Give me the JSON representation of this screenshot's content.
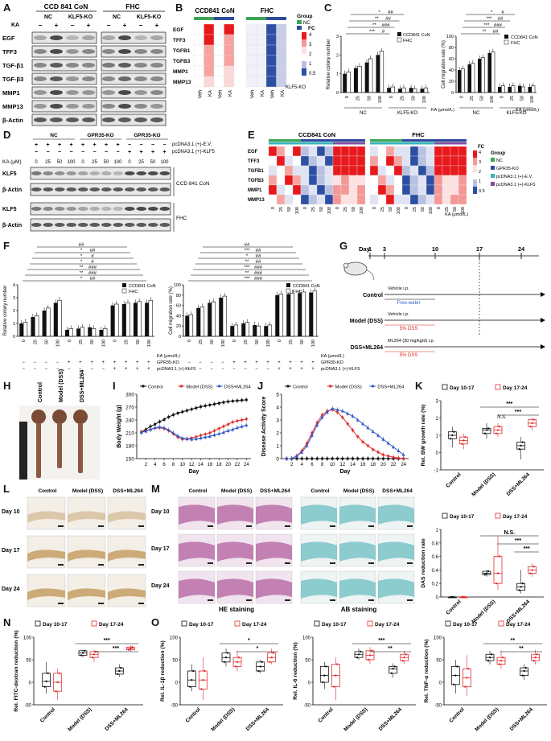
{
  "figure": {
    "panel_letters": [
      "A",
      "B",
      "C",
      "D",
      "E",
      "F",
      "G",
      "H",
      "I",
      "J",
      "K",
      "L",
      "M",
      "N",
      "O"
    ]
  },
  "panel_A": {
    "groups": [
      "CCD 841 CoN",
      "FHC"
    ],
    "subgroups": [
      "NC",
      "KLF5-KO",
      "NC",
      "KLF5-KO"
    ],
    "ka_label": "KA",
    "ka_signs": [
      "−",
      "+",
      "−",
      "+",
      "−",
      "+",
      "−",
      "+"
    ],
    "rows": [
      "EGF",
      "TFF3",
      "TGF-β1",
      "TGF-β3",
      "MMP1",
      "MMP13",
      "β-Actin"
    ]
  },
  "panel_B": {
    "titles": [
      "CCD841 CoN",
      "FHC"
    ],
    "rows": [
      "EGF",
      "TFF3",
      "TGFB1",
      "TGFB3",
      "MMP1",
      "MMP13"
    ],
    "cols": [
      "Veh",
      "KA",
      "Veh",
      "KA"
    ],
    "legend_fc": "FC",
    "legend_ticks": [
      "4",
      "3",
      "2",
      "1",
      "0.5"
    ],
    "legend_group_title": "Group",
    "legend_groups": [
      "NC",
      "KLF5-KO"
    ],
    "colors": {
      "nc": "#3aa655",
      "ko": "#2e4a9e",
      "high": "#e8191c",
      "low": "#2d4fa3"
    }
  },
  "panel_C": {
    "left_ylabel": "Relative colony number",
    "right_ylabel": "Cell migration rate (%)",
    "legend": [
      "CCD841 CoN",
      "FHC"
    ],
    "x_ticks": [
      "0",
      "25",
      "50",
      "100",
      "0",
      "25",
      "50",
      "100"
    ],
    "x_title": "KA (μmol/L)",
    "groups": [
      "NC",
      "KLF5-KO"
    ],
    "sig_left": [
      "***",
      "#",
      "**",
      "###",
      "**",
      "##",
      "*",
      "##"
    ],
    "sig_right": [
      "**",
      "##",
      "***",
      "###",
      "***",
      "##",
      "*",
      "#"
    ]
  },
  "panel_D": {
    "col_groups": [
      "NC",
      "GPR35-KO",
      "GPR35-KO"
    ],
    "row_ev": "pcDNA3.1 (+)-E.V.",
    "row_klf5": "pcDNA3.1 (+)-KLF5",
    "ka_label": "KA (μM)",
    "ka_values": [
      "0",
      "25",
      "50",
      "100",
      "0",
      "25",
      "50",
      "100",
      "0",
      "25",
      "50",
      "100"
    ],
    "ev_signs": [
      "+",
      "+",
      "+",
      "+",
      "+",
      "+",
      "+",
      "+",
      "−",
      "−",
      "−",
      "−"
    ],
    "klf5_signs": [
      "−",
      "−",
      "−",
      "−",
      "−",
      "−",
      "−",
      "−",
      "+",
      "+",
      "+",
      "+"
    ],
    "rows": [
      "KLF5",
      "β-Actin",
      "KLF5",
      "β-Actin"
    ],
    "cell_lines": [
      "CCD 841 CoN",
      "FHC"
    ]
  },
  "panel_E": {
    "titles": [
      "CCD841 CoN",
      "FHC"
    ],
    "rows": [
      "EGF",
      "TFF3",
      "TGFB1",
      "TGFB3",
      "MMP1",
      "MMP13"
    ],
    "x_ticks": [
      "0",
      "25",
      "50",
      "100",
      "0",
      "25",
      "50",
      "100",
      "0",
      "25",
      "50",
      "100"
    ],
    "x_title": "KA (μmol/L)",
    "legend_fc": "FC",
    "legend_ticks": [
      "4",
      "3",
      "2",
      "1",
      "0.5"
    ],
    "legend_group_title": "Group",
    "legend_groups": [
      "NC",
      "GPR35-KO",
      "pcDNA3.1 (+)-E.V.",
      "pcDNA3.1 (+)-KLF5"
    ],
    "colors": {
      "nc": "#3aa655",
      "ko": "#2e4a9e",
      "ev": "#3ab3b8",
      "klf5": "#7b4f9e"
    }
  },
  "panel_F": {
    "left_ylabel": "Relative colony number",
    "right_ylabel": "Cell migration rate (%)",
    "legend": [
      "CCD841 CoN",
      "FHC"
    ],
    "x_ticks": [
      "0",
      "25",
      "50",
      "100",
      "0",
      "25",
      "50",
      "100",
      "0",
      "25",
      "50",
      "100"
    ],
    "row_labels": [
      "KA (μmol/L)",
      "GPR35-KO",
      "pcDNA3.1 (+)-KLF5"
    ],
    "sig_left": [
      "*",
      "##",
      "**",
      "###",
      "**",
      "###",
      "*",
      "#",
      "*",
      "#",
      "*",
      "##",
      "##"
    ],
    "sig_right": [
      "***",
      "###",
      "**",
      "###",
      "***",
      "###",
      "**",
      "##",
      "*",
      "##",
      "***",
      "##",
      "##"
    ]
  },
  "panel_G": {
    "days": [
      "Day",
      "1",
      "3",
      "10",
      "17",
      "24"
    ],
    "groups": [
      "Control",
      "Model (DSS)",
      "DSS+ML264"
    ],
    "annotations": [
      "Vehicle i.p.",
      "Free-water",
      "Vehicle i.p.",
      "5% DSS",
      "ML264 (30 mg/kg/d) i.p.",
      "5% DSS"
    ]
  },
  "panel_H": {
    "labels": [
      "Control",
      "Model (DSS)",
      "DSS+ML264"
    ]
  },
  "panel_I": {
    "chart_data": {
      "type": "line",
      "ylabel": "Body Weight (g)",
      "xlabel": "Day",
      "ylim": [
        150,
        300
      ],
      "yticks": [
        150,
        180,
        210,
        240,
        270,
        300
      ],
      "xticks": [
        2,
        4,
        6,
        8,
        10,
        12,
        14,
        16,
        18,
        20,
        22,
        24
      ],
      "legend": [
        "Control",
        "Model (DSS)",
        "DSS+ML264"
      ],
      "series": [
        {
          "name": "Control",
          "color": "#111111",
          "x": [
            1,
            2,
            3,
            4,
            5,
            6,
            7,
            8,
            9,
            10,
            11,
            12,
            13,
            14,
            15,
            16,
            17,
            18,
            19,
            20,
            21,
            22,
            23,
            24
          ],
          "y": [
            212,
            218,
            225,
            230,
            236,
            241,
            247,
            252,
            256,
            259,
            262,
            265,
            268,
            271,
            273,
            275,
            277,
            279,
            281,
            283,
            284,
            285,
            286,
            287
          ]
        },
        {
          "name": "Model (DSS)",
          "color": "#e32b2b",
          "x": [
            1,
            2,
            3,
            4,
            5,
            6,
            7,
            8,
            9,
            10,
            11,
            12,
            13,
            14,
            15,
            16,
            17,
            18,
            19,
            20,
            21,
            22,
            23,
            24
          ],
          "y": [
            212,
            215,
            218,
            221,
            222,
            220,
            215,
            208,
            200,
            195,
            196,
            198,
            201,
            204,
            207,
            210,
            215,
            220,
            225,
            230,
            235,
            238,
            240,
            242
          ]
        },
        {
          "name": "DSS+ML264",
          "color": "#2e58c7",
          "x": [
            1,
            2,
            3,
            4,
            5,
            6,
            7,
            8,
            9,
            10,
            11,
            12,
            13,
            14,
            15,
            16,
            17,
            18,
            19,
            20,
            21,
            22,
            23,
            24
          ],
          "y": [
            211,
            214,
            218,
            222,
            224,
            222,
            217,
            210,
            203,
            198,
            196,
            195,
            196,
            198,
            200,
            202,
            205,
            208,
            211,
            215,
            218,
            222,
            225,
            228
          ]
        }
      ]
    }
  },
  "panel_J": {
    "chart_data": {
      "type": "line",
      "ylabel": "Disease Activity Score",
      "xlabel": "Day",
      "ylim": [
        0,
        5
      ],
      "yticks": [
        0,
        1,
        2,
        3,
        4,
        5
      ],
      "xticks": [
        2,
        4,
        6,
        8,
        10,
        12,
        14,
        16,
        18,
        20,
        22,
        24
      ],
      "legend": [
        "Control",
        "Model (DSS)",
        "DSS+ML264"
      ],
      "series": [
        {
          "name": "Control",
          "color": "#111111",
          "x": [
            1,
            2,
            3,
            4,
            5,
            6,
            7,
            8,
            9,
            10,
            11,
            12,
            13,
            14,
            15,
            16,
            17,
            18,
            19,
            20,
            21,
            22,
            23,
            24
          ],
          "y": [
            0,
            0,
            0,
            0,
            0,
            0,
            0,
            0,
            0,
            0,
            0,
            0,
            0,
            0,
            0,
            0,
            0,
            0,
            0,
            0,
            0,
            0,
            0,
            0
          ]
        },
        {
          "name": "Model (DSS)",
          "color": "#e32b2b",
          "x": [
            1,
            2,
            3,
            4,
            5,
            6,
            7,
            8,
            9,
            10,
            11,
            12,
            13,
            14,
            15,
            16,
            17,
            18,
            19,
            20,
            21,
            22,
            23,
            24
          ],
          "y": [
            0,
            0,
            0.2,
            0.6,
            1.2,
            2.0,
            2.8,
            3.4,
            3.7,
            3.8,
            3.6,
            3.2,
            2.7,
            2.2,
            1.7,
            1.3,
            1.0,
            0.7,
            0.5,
            0.3,
            0.2,
            0.1,
            0.05,
            0
          ]
        },
        {
          "name": "DSS+ML264",
          "color": "#2e58c7",
          "x": [
            1,
            2,
            3,
            4,
            5,
            6,
            7,
            8,
            9,
            10,
            11,
            12,
            13,
            14,
            15,
            16,
            17,
            18,
            19,
            20,
            21,
            22,
            23,
            24
          ],
          "y": [
            0,
            0,
            0.2,
            0.5,
            1.0,
            1.8,
            2.6,
            3.2,
            3.6,
            3.9,
            3.8,
            3.7,
            3.5,
            3.3,
            3.0,
            2.7,
            2.4,
            2.1,
            1.8,
            1.5,
            1.2,
            0.9,
            0.6,
            0.3
          ]
        }
      ]
    }
  },
  "panel_K": {
    "legend": [
      "Day 10-17",
      "Day 17-24"
    ],
    "top_ylabel": "Rel. BW growth rate (%)",
    "bottom_ylabel": "DAS reduction rate",
    "groups": [
      "Control",
      "Model (DSS)",
      "DSS+ML264"
    ],
    "top_sig": [
      "***",
      "***"
    ],
    "bottom_sig": [
      "N.S.",
      "***",
      "***"
    ],
    "top_sig_ns": "N.S."
  },
  "panel_L": {
    "cols": [
      "Control",
      "Model (DSS)",
      "DSS+ML264"
    ],
    "rows": [
      "Day 10",
      "Day 17",
      "Day 24"
    ]
  },
  "panel_M": {
    "cols": [
      "Control",
      "Model (DSS)",
      "DSS+ML264",
      "Control",
      "Model (DSS)",
      "DSS+ML264"
    ],
    "rows": [
      "Day 10",
      "Day 17",
      "Day 24"
    ],
    "captions": [
      "HE staining",
      "AB staining"
    ]
  },
  "panel_N": {
    "legend": [
      "Day 10-17",
      "Day 17-24"
    ],
    "ylabel": "Rel. FITC-dextran reduction (%)",
    "groups": [
      "Control",
      "Model (DSS)",
      "DSS+ML264"
    ],
    "sig": [
      "***",
      "***"
    ]
  },
  "panel_O": {
    "legend": [
      "Day 10-17",
      "Day 17-24"
    ],
    "charts": [
      {
        "ylabel": "Rel. IL-1β reduction (%)",
        "sig": [
          "*",
          "*"
        ]
      },
      {
        "ylabel": "Rel. IL-6 reduction (%)",
        "sig": [
          "***",
          "**"
        ]
      },
      {
        "ylabel": "Rel. TNF-α reduction (%)",
        "sig": [
          "**",
          "**"
        ]
      }
    ],
    "groups": [
      "Control",
      "Model (DSS)",
      "DSS+ML264"
    ]
  }
}
